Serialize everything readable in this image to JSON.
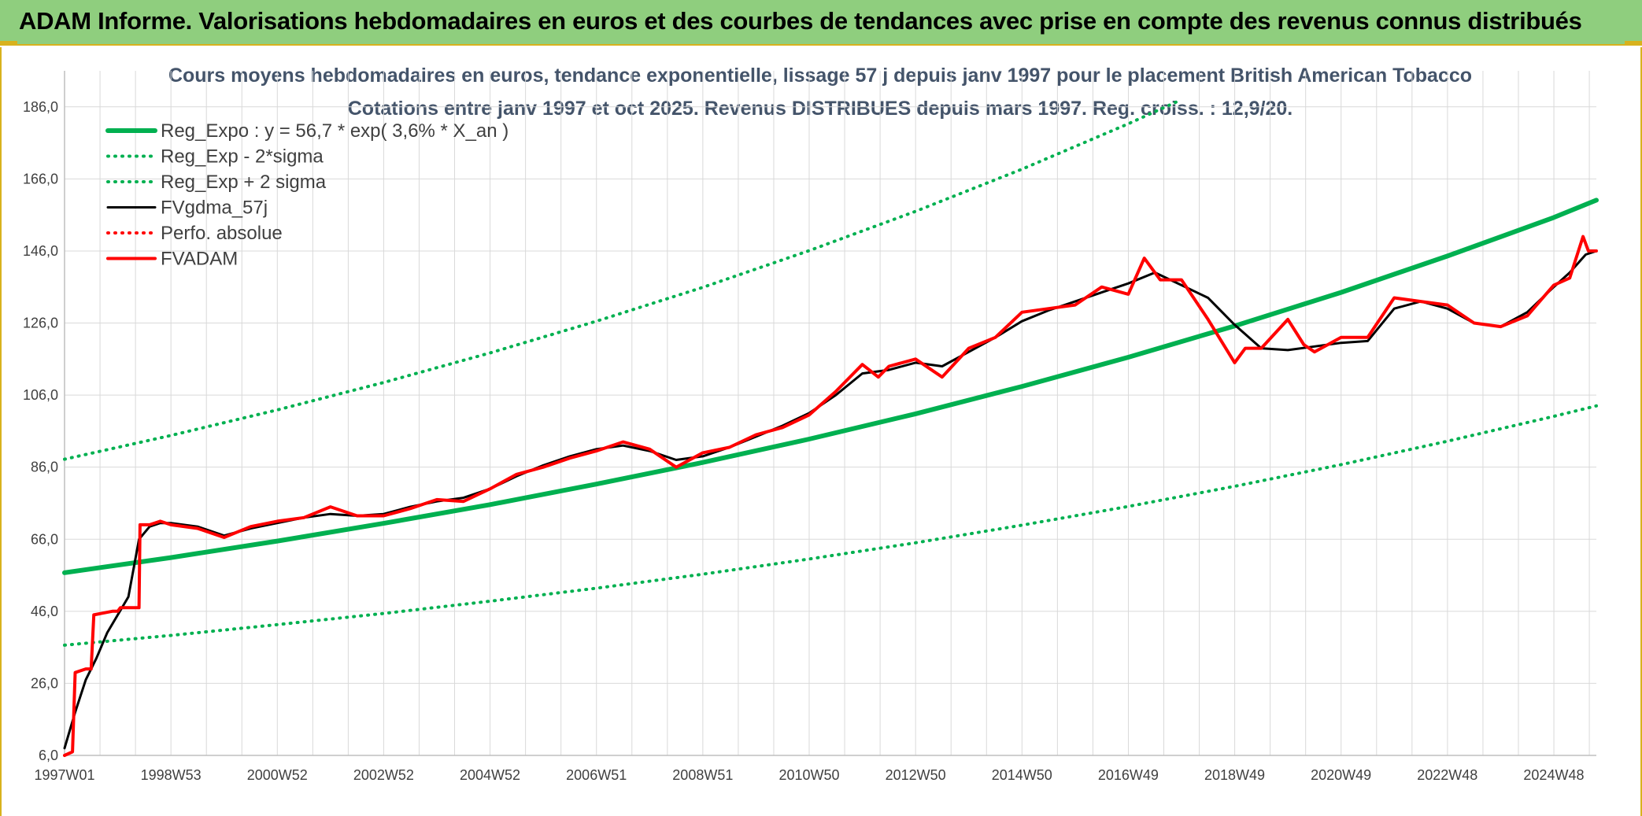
{
  "banner": {
    "title": "ADAM Informe. Valorisations hebdomadaires en euros et des courbes de tendances avec prise en compte des revenus connus distribués"
  },
  "colors": {
    "banner_bg": "#8fce7e",
    "accent_gold": "#d8b21d",
    "reg_green": "#00b050",
    "price_red": "#ff0000",
    "smooth_black": "#000000",
    "grid": "#d9d9d9",
    "title_text": "#44546a"
  },
  "chart_data": {
    "type": "line",
    "title": "Cours moyens hebdomadaires en euros, tendance exponentielle, lissage 57 j depuis janv 1997 pour le placement British American Tobacco",
    "subtitle": "Cotations entre janv 1997 et oct 2025. Revenus DISTRIBUES depuis mars 1997. Reg. croiss. : 12,9/20.",
    "ylim": [
      6,
      196
    ],
    "yticks": [
      "6,0",
      "26,0",
      "46,0",
      "66,0",
      "86,0",
      "106,0",
      "126,0",
      "146,0",
      "166,0",
      "186,0"
    ],
    "xlim": [
      1997.0,
      2025.8
    ],
    "xticks": [
      {
        "label": "1997W01",
        "x": 1997.0
      },
      {
        "label": "1998W53",
        "x": 1999.0
      },
      {
        "label": "2000W52",
        "x": 2001.0
      },
      {
        "label": "2002W52",
        "x": 2003.0
      },
      {
        "label": "2004W52",
        "x": 2005.0
      },
      {
        "label": "2006W51",
        "x": 2007.0
      },
      {
        "label": "2008W51",
        "x": 2009.0
      },
      {
        "label": "2010W50",
        "x": 2011.0
      },
      {
        "label": "2012W50",
        "x": 2013.0
      },
      {
        "label": "2014W50",
        "x": 2015.0
      },
      {
        "label": "2016W49",
        "x": 2017.0
      },
      {
        "label": "2018W49",
        "x": 2019.0
      },
      {
        "label": "2020W49",
        "x": 2021.0
      },
      {
        "label": "2022W48",
        "x": 2023.0
      },
      {
        "label": "2024W48",
        "x": 2025.0
      }
    ],
    "grid": true,
    "legend_position": "top-left",
    "series": [
      {
        "name": "Reg_Expo : y = 56,7 * exp( 3,6% *  X_an )",
        "style": "solid",
        "color": "#00b050",
        "x": [
          1997.0,
          1999.0,
          2001.0,
          2003.0,
          2005.0,
          2007.0,
          2009.0,
          2011.0,
          2013.0,
          2015.0,
          2017.0,
          2019.0,
          2021.0,
          2023.0,
          2025.0,
          2025.8
        ],
        "y": [
          56.7,
          60.9,
          65.5,
          70.4,
          75.6,
          81.3,
          87.3,
          93.8,
          100.8,
          108.4,
          116.5,
          125.2,
          134.5,
          144.6,
          155.3,
          160.1
        ]
      },
      {
        "name": "Reg_Exp - 2*sigma",
        "style": "dotted",
        "color": "#00b050",
        "x": [
          1997.0,
          1999.0,
          2001.0,
          2003.0,
          2005.0,
          2007.0,
          2009.0,
          2011.0,
          2013.0,
          2015.0,
          2017.0,
          2019.0,
          2021.0,
          2023.0,
          2025.0,
          2025.8
        ],
        "y": [
          36.6,
          39.3,
          42.3,
          45.4,
          48.8,
          52.4,
          56.3,
          60.5,
          65.0,
          69.9,
          75.1,
          80.7,
          86.7,
          93.2,
          100.1,
          103.0
        ]
      },
      {
        "name": "Reg_Exp + 2 sigma",
        "style": "dotted",
        "color": "#00b050",
        "x": [
          1997.0,
          1999.0,
          2001.0,
          2003.0,
          2005.0,
          2007.0,
          2009.0,
          2011.0,
          2013.0,
          2015.0,
          2017.0,
          2018.0
        ],
        "y": [
          88.2,
          94.8,
          101.9,
          109.5,
          117.7,
          126.5,
          135.9,
          146.1,
          157.0,
          168.7,
          181.3,
          188.0
        ]
      },
      {
        "name": "FVgdma_57j",
        "style": "solid",
        "color": "#000000",
        "x": [
          1997.0,
          1997.2,
          1997.4,
          1997.6,
          1997.8,
          1998.0,
          1998.2,
          1998.4,
          1998.6,
          1998.8,
          1999.0,
          1999.5,
          2000.0,
          2000.5,
          2001.0,
          2001.5,
          2002.0,
          2002.5,
          2003.0,
          2003.5,
          2004.0,
          2004.5,
          2005.0,
          2005.5,
          2006.0,
          2006.5,
          2007.0,
          2007.5,
          2008.0,
          2008.5,
          2009.0,
          2009.5,
          2010.0,
          2010.5,
          2011.0,
          2011.5,
          2012.0,
          2012.5,
          2013.0,
          2013.5,
          2014.0,
          2014.5,
          2015.0,
          2015.5,
          2016.0,
          2016.5,
          2017.0,
          2017.5,
          2018.0,
          2018.5,
          2019.0,
          2019.5,
          2020.0,
          2020.5,
          2021.0,
          2021.5,
          2022.0,
          2022.5,
          2023.0,
          2023.5,
          2024.0,
          2024.5,
          2025.0,
          2025.3,
          2025.6,
          2025.8
        ],
        "y": [
          8.0,
          18.0,
          27.0,
          33.0,
          40.0,
          45.0,
          50.0,
          66.0,
          69.5,
          70.5,
          70.5,
          69.5,
          67.0,
          69.0,
          70.5,
          72.0,
          73.0,
          72.5,
          73.0,
          75.0,
          76.5,
          77.5,
          80.0,
          83.5,
          86.5,
          89.0,
          91.0,
          92.0,
          90.5,
          88.0,
          89.0,
          91.5,
          94.5,
          97.5,
          101.0,
          106.0,
          112.0,
          113.0,
          115.0,
          114.0,
          118.0,
          122.0,
          126.5,
          129.5,
          132.0,
          134.5,
          137.0,
          140.0,
          136.5,
          133.0,
          125.5,
          119.0,
          118.5,
          119.5,
          120.5,
          121.0,
          130.0,
          132.0,
          130.0,
          126.0,
          125.0,
          129.0,
          136.0,
          140.0,
          145.0,
          146.0
        ]
      },
      {
        "name": "Perfo. absolue",
        "style": "dotted",
        "color": "#ff0000",
        "x": [],
        "y": []
      },
      {
        "name": "FVADAM",
        "style": "solid",
        "color": "#ff0000",
        "x": [
          1997.0,
          1997.15,
          1997.2,
          1997.4,
          1997.5,
          1997.55,
          1997.9,
          1998.0,
          1998.05,
          1998.4,
          1998.42,
          1998.6,
          1998.8,
          1999.0,
          1999.5,
          2000.0,
          2000.5,
          2001.0,
          2001.5,
          2002.0,
          2002.5,
          2003.0,
          2003.5,
          2004.0,
          2004.5,
          2005.0,
          2005.5,
          2006.0,
          2006.5,
          2007.0,
          2007.5,
          2008.0,
          2008.5,
          2009.0,
          2009.5,
          2010.0,
          2010.5,
          2011.0,
          2011.5,
          2012.0,
          2012.3,
          2012.5,
          2013.0,
          2013.5,
          2014.0,
          2014.5,
          2015.0,
          2015.5,
          2016.0,
          2016.5,
          2017.0,
          2017.3,
          2017.6,
          2018.0,
          2018.5,
          2019.0,
          2019.2,
          2019.5,
          2020.0,
          2020.3,
          2020.5,
          2021.0,
          2021.5,
          2022.0,
          2022.5,
          2023.0,
          2023.5,
          2024.0,
          2024.5,
          2025.0,
          2025.3,
          2025.55,
          2025.65,
          2025.8
        ],
        "y": [
          6.0,
          7.0,
          29.0,
          30.0,
          30.0,
          45.0,
          46.0,
          46.0,
          47.0,
          47.0,
          70.0,
          70.0,
          71.0,
          70.0,
          69.0,
          66.5,
          69.5,
          71.0,
          72.0,
          75.0,
          72.5,
          72.5,
          74.5,
          77.0,
          76.5,
          80.0,
          84.0,
          86.0,
          88.5,
          90.5,
          93.0,
          91.0,
          86.0,
          90.0,
          91.5,
          95.0,
          97.0,
          100.5,
          107.0,
          114.5,
          111.0,
          114.0,
          116.0,
          111.0,
          119.0,
          122.0,
          129.0,
          130.0,
          131.0,
          136.0,
          134.0,
          144.0,
          138.0,
          138.0,
          127.0,
          115.0,
          119.0,
          119.0,
          127.0,
          120.0,
          118.0,
          122.0,
          122.0,
          133.0,
          132.0,
          131.0,
          126.0,
          125.0,
          128.0,
          136.5,
          138.5,
          150.0,
          146.0,
          146.0
        ]
      }
    ]
  }
}
